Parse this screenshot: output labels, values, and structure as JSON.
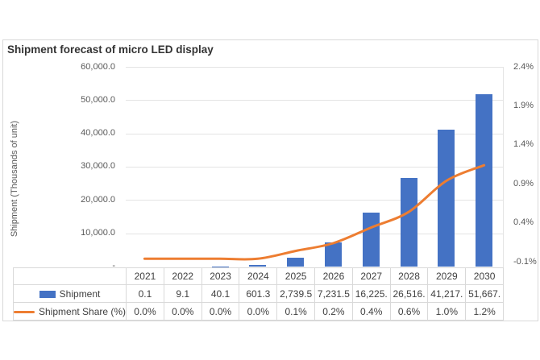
{
  "chart": {
    "title": "Shipment forecast of micro LED display",
    "y_axis_title": "Shipment (Thousands of unit)",
    "left_axis_labels": [
      "60,000.0",
      "50,000.0",
      "40,000.0",
      "30,000.0",
      "20,000.0",
      "10,000.0",
      "-"
    ],
    "right_axis_labels": [
      "2.4%",
      "1.9%",
      "1.4%",
      "0.9%",
      "0.4%",
      "-0.1%"
    ],
    "colors": {
      "bar": "#4472C4",
      "line": "#ED7D31",
      "gridline": "#E4E4E4",
      "axis_text": "#595959",
      "title_text": "#333333",
      "table_border": "#D9D9D9",
      "table_text": "#404040"
    }
  },
  "chart_data": {
    "type": "bar",
    "title": "Shipment forecast of micro LED display",
    "categories": [
      "2021",
      "2022",
      "2023",
      "2024",
      "2025",
      "2026",
      "2027",
      "2028",
      "2029",
      "2030"
    ],
    "series": [
      {
        "name": "Shipment",
        "type": "bar",
        "axis": "left",
        "values": [
          0.1,
          9.1,
          40.1,
          601.3,
          2739.5,
          7231.5,
          16225,
          26516,
          41217,
          51667
        ]
      },
      {
        "name": "Shipment Share (%)",
        "type": "line",
        "axis": "right",
        "values": [
          0.0,
          0.0,
          0.0,
          0.0,
          0.1,
          0.2,
          0.4,
          0.6,
          1.0,
          1.2
        ]
      }
    ],
    "ylabel": "Shipment (Thousands of unit)",
    "left_ylim": [
      0,
      60000
    ],
    "right_ylim": [
      -0.1,
      2.4
    ],
    "grid": true,
    "line_smoothed": true,
    "legend_position": "data-table-left"
  },
  "table": {
    "years": [
      "2021",
      "2022",
      "2023",
      "2024",
      "2025",
      "2026",
      "2027",
      "2028",
      "2029",
      "2030"
    ],
    "rows": [
      {
        "label": "Shipment",
        "values": [
          "0.1",
          "9.1",
          "40.1",
          "601.3",
          "2,739.5",
          "7,231.5",
          "16,225.",
          "26,516.",
          "41,217.",
          "51,667."
        ]
      },
      {
        "label": "Shipment Share (%)",
        "values": [
          "0.0%",
          "0.0%",
          "0.0%",
          "0.0%",
          "0.1%",
          "0.2%",
          "0.4%",
          "0.6%",
          "1.0%",
          "1.2%"
        ]
      }
    ]
  }
}
